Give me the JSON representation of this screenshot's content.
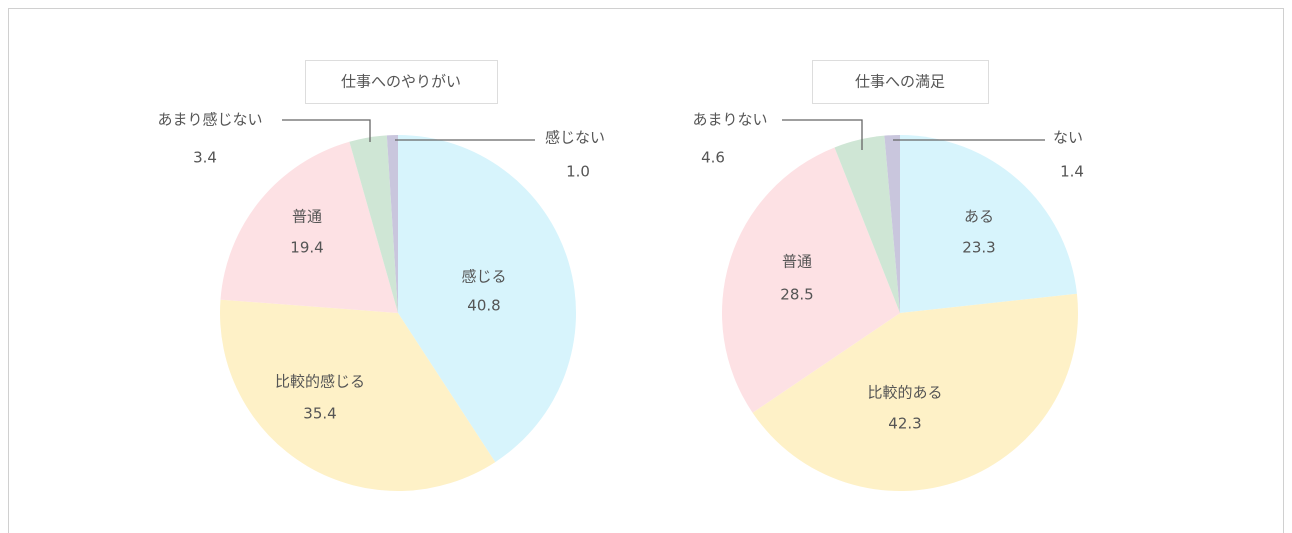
{
  "chart_data": [
    {
      "type": "pie",
      "title": "仕事へのやりがい",
      "categories": [
        "感じる",
        "比較的感じる",
        "普通",
        "あまり感じない",
        "感じない"
      ],
      "values": [
        40.8,
        35.4,
        19.4,
        3.4,
        1.0
      ],
      "value_labels": [
        "40.8",
        "35.4",
        "19.4",
        "3.4",
        "1.0"
      ],
      "colors": [
        "#d7f4fc",
        "#fef1c7",
        "#fde1e4",
        "#cfe6d5",
        "#c9c6dd"
      ]
    },
    {
      "type": "pie",
      "title": "仕事への満足",
      "categories": [
        "ある",
        "比較的ある",
        "普通",
        "あまりない",
        "ない"
      ],
      "values": [
        23.3,
        42.3,
        28.5,
        4.6,
        1.4
      ],
      "value_labels": [
        "23.3",
        "42.3",
        "28.5",
        "4.6",
        "1.4"
      ],
      "colors": [
        "#d7f4fc",
        "#fef1c7",
        "#fde1e4",
        "#cfe6d5",
        "#c9c6dd"
      ]
    }
  ]
}
